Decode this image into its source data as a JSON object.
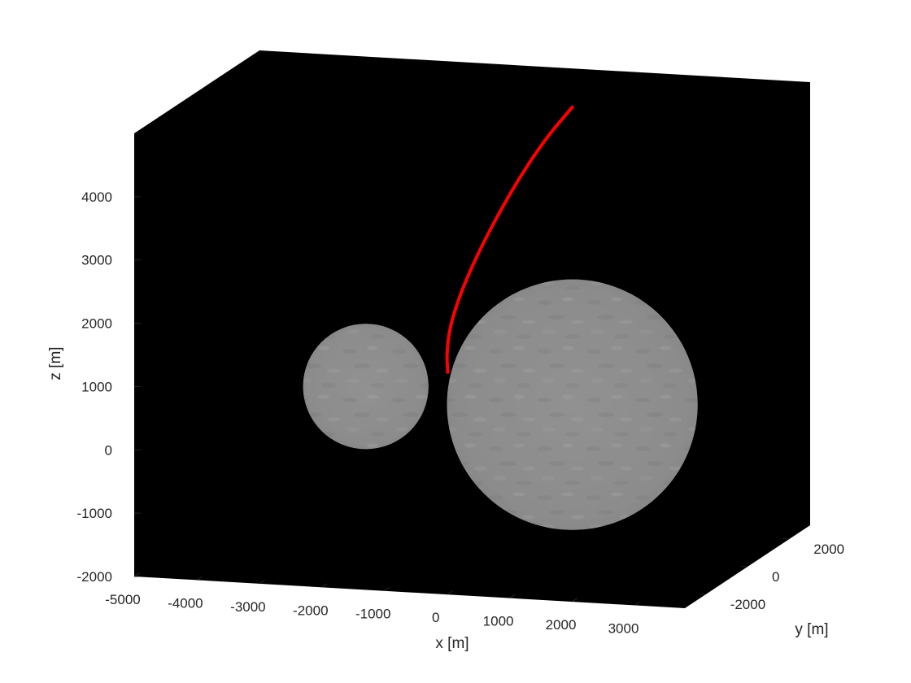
{
  "chart_data": {
    "type": "scatter",
    "title": "",
    "xlabel": "x [m]",
    "ylabel": "y [m]",
    "zlabel": "z [m]",
    "xlim": [
      -5000,
      3800
    ],
    "ylim": [
      -3000,
      3000
    ],
    "zlim": [
      -2000,
      5000
    ],
    "xticks": [
      "-5000",
      "-4000",
      "-3000",
      "-2000",
      "-1000",
      "0",
      "1000",
      "2000",
      "3000"
    ],
    "yticks": [
      "-2000",
      "0",
      "2000"
    ],
    "zticks": [
      "-2000",
      "-1000",
      "0",
      "1000",
      "2000",
      "3000",
      "4000"
    ],
    "background_color": "#000000",
    "grid": false,
    "series": [
      {
        "type": "line3d",
        "color": "#ff0000",
        "x": [
          1000,
          600,
          200,
          -200,
          -550,
          -800,
          -950,
          -1000,
          -990
        ],
        "y": [
          0,
          0,
          0,
          0,
          0,
          0,
          0,
          0,
          0
        ],
        "z": [
          5100,
          4600,
          4000,
          3300,
          2600,
          2000,
          1500,
          1100,
          800
        ]
      }
    ],
    "bodies": [
      {
        "type": "sphere",
        "center": [
          -2300,
          0,
          500
        ],
        "radius": 1000,
        "color": "#8e8e8e"
      },
      {
        "type": "sphere",
        "center": [
          1000,
          0,
          400
        ],
        "radius": 2000,
        "color": "#8e8e8e"
      }
    ]
  }
}
